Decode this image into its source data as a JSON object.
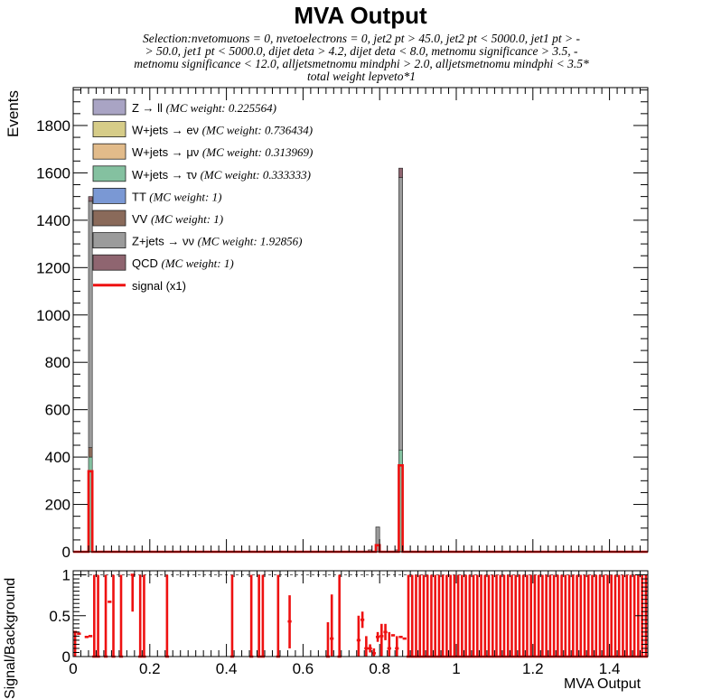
{
  "chart_data": [
    {
      "type": "bar",
      "stacked": true,
      "title": "MVA Output",
      "subtitle_lines": [
        "Selection:nvetomuons = 0, nvetoelectrons = 0, jet2 pt > 45.0, jet2 pt < 5000.0, jet1 pt > -",
        "> 50.0, jet1 pt < 5000.0, dijet deta > 4.2, dijet deta < 8.0, metnomu significance > 3.5, -",
        "metnomu significance < 12.0, alljetsmetnomu mindphi > 2.0, alljetsmetnomu mindphi < 3.5*",
        "total weight lepveto*1"
      ],
      "ylabel": "Events",
      "xlim": [
        0,
        1.5
      ],
      "ylim": [
        0,
        1960
      ],
      "yticks": [
        0,
        200,
        400,
        600,
        800,
        1000,
        1200,
        1400,
        1600,
        1800
      ],
      "bin_width": 0.01,
      "legend_position": "top-left",
      "series": [
        {
          "name": "Z → ll",
          "weight_label": "(MC weight: 0.225564)",
          "color": "#a9a4c4",
          "bins": [
            {
              "x": 0.045,
              "value": 0
            },
            {
              "x": 0.855,
              "value": 0
            }
          ]
        },
        {
          "name": "W+jets → eν",
          "weight_label": "(MC weight: 0.736434)",
          "color": "#d6cc88",
          "bins": [
            {
              "x": 0.045,
              "value": 0
            },
            {
              "x": 0.855,
              "value": 0
            }
          ]
        },
        {
          "name": "W+jets → μν",
          "weight_label": "(MC weight: 0.313969)",
          "color": "#e2bb8a",
          "bins": [
            {
              "x": 0.045,
              "value": 0
            },
            {
              "x": 0.855,
              "value": 0
            }
          ]
        },
        {
          "name": "W+jets → τν",
          "weight_label": "(MC weight: 0.333333)",
          "color": "#84c1a0",
          "bins": [
            {
              "x": 0.045,
              "value": 400
            },
            {
              "x": 0.855,
              "value": 430
            }
          ]
        },
        {
          "name": "TT",
          "weight_label": "(MC weight: 1)",
          "color": "#7a98d4",
          "bins": [
            {
              "x": 0.045,
              "value": 0
            },
            {
              "x": 0.855,
              "value": 0
            }
          ]
        },
        {
          "name": "VV",
          "weight_label": "(MC weight: 1)",
          "color": "#8a6a5a",
          "bins": [
            {
              "x": 0.045,
              "value": 40
            },
            {
              "x": 0.855,
              "value": 0
            }
          ]
        },
        {
          "name": "Z+jets → νν",
          "weight_label": "(MC weight: 1.92856)",
          "color": "#9b9b9b",
          "bins": [
            {
              "x": 0.045,
              "value": 1040
            },
            {
              "x": 0.795,
              "value": 105
            },
            {
              "x": 0.775,
              "value": 8
            },
            {
              "x": 0.845,
              "value": 8
            },
            {
              "x": 0.855,
              "value": 1150
            }
          ]
        },
        {
          "name": "QCD",
          "weight_label": "(MC weight: 1)",
          "color": "#8f6570",
          "bins": [
            {
              "x": 0.045,
              "value": 20
            },
            {
              "x": 0.855,
              "value": 40
            }
          ]
        }
      ],
      "signal": {
        "name": "signal (x1)",
        "color": "#ee1111",
        "bins": [
          {
            "x": 0.045,
            "value": 340
          },
          {
            "x": 0.795,
            "value": 28
          },
          {
            "x": 0.855,
            "value": 365
          }
        ]
      }
    },
    {
      "type": "scatter",
      "ylabel": "Signal/Background",
      "xlabel": "MVA Output",
      "xlim": [
        0,
        1.5
      ],
      "ylim": [
        0,
        1.05
      ],
      "xticks": [
        0,
        0.2,
        0.4,
        0.6,
        0.8,
        1,
        1.2,
        1.4
      ],
      "xtick_labels": [
        "0",
        "0.2",
        "0.4",
        "0.6",
        "0.8",
        "1",
        "1.2",
        "1.4"
      ],
      "yticks": [
        0,
        0.5,
        1
      ],
      "ytick_labels": [
        "0",
        "0.5",
        "1"
      ],
      "reference_line": 1,
      "color": "#ee1111",
      "points": [
        {
          "x": 0.005,
          "y": 0.3,
          "lo": 0.0,
          "hi": 0.3
        },
        {
          "x": 0.015,
          "y": 0.28,
          "lo": 0.28,
          "hi": 0.28
        },
        {
          "x": 0.035,
          "y": 0.24,
          "lo": 0.24,
          "hi": 0.24
        },
        {
          "x": 0.045,
          "y": 0.25,
          "lo": 0.25,
          "hi": 0.25
        },
        {
          "x": 0.055,
          "y": 0.0,
          "lo": 0.0,
          "hi": 1.0
        },
        {
          "x": 0.065,
          "y": 0.0,
          "lo": 0.0,
          "hi": 1.0
        },
        {
          "x": 0.085,
          "y": 0.0,
          "lo": 0.0,
          "hi": 1.0
        },
        {
          "x": 0.095,
          "y": 0.67,
          "lo": 0.67,
          "hi": 0.67
        },
        {
          "x": 0.105,
          "y": 0.0,
          "lo": 0.0,
          "hi": 1.0
        },
        {
          "x": 0.125,
          "y": 0.0,
          "lo": 0.0,
          "hi": 1.0
        },
        {
          "x": 0.155,
          "y": 1.0,
          "lo": 0.55,
          "hi": 1.0
        },
        {
          "x": 0.175,
          "y": 0.0,
          "lo": 0.0,
          "hi": 1.0
        },
        {
          "x": 0.185,
          "y": 0.0,
          "lo": 0.0,
          "hi": 1.0
        },
        {
          "x": 0.245,
          "y": 0.0,
          "lo": 0.0,
          "hi": 1.0
        },
        {
          "x": 0.415,
          "y": 0.0,
          "lo": 0.0,
          "hi": 1.0
        },
        {
          "x": 0.465,
          "y": 0.0,
          "lo": 0.0,
          "hi": 1.0
        },
        {
          "x": 0.485,
          "y": 0.0,
          "lo": 0.0,
          "hi": 1.0
        },
        {
          "x": 0.495,
          "y": 0.0,
          "lo": 0.0,
          "hi": 1.0
        },
        {
          "x": 0.535,
          "y": 0.0,
          "lo": 0.0,
          "hi": 1.0
        },
        {
          "x": 0.565,
          "y": 0.43,
          "lo": 0.1,
          "hi": 0.75
        },
        {
          "x": 0.665,
          "y": 0.0,
          "lo": 0.0,
          "hi": 0.42
        },
        {
          "x": 0.675,
          "y": 0.22,
          "lo": 0.0,
          "hi": 0.76
        },
        {
          "x": 0.695,
          "y": 0.0,
          "lo": 0.0,
          "hi": 1.0
        },
        {
          "x": 0.745,
          "y": 0.2,
          "lo": 0.0,
          "hi": 0.5
        },
        {
          "x": 0.755,
          "y": 0.45,
          "lo": 0.35,
          "hi": 0.55
        },
        {
          "x": 0.765,
          "y": 0.1,
          "lo": 0.0,
          "hi": 0.25
        },
        {
          "x": 0.775,
          "y": 0.1,
          "lo": 0.05,
          "hi": 0.15
        },
        {
          "x": 0.785,
          "y": 0.04,
          "lo": 0.0,
          "hi": 0.1
        },
        {
          "x": 0.795,
          "y": 0.24,
          "lo": 0.18,
          "hi": 0.3
        },
        {
          "x": 0.805,
          "y": 0.25,
          "lo": 0.0,
          "hi": 0.4
        },
        {
          "x": 0.815,
          "y": 0.3,
          "lo": 0.2,
          "hi": 0.4
        },
        {
          "x": 0.825,
          "y": 0.1,
          "lo": 0.0,
          "hi": 0.3
        },
        {
          "x": 0.835,
          "y": 0.26,
          "lo": 0.26,
          "hi": 0.26
        },
        {
          "x": 0.845,
          "y": 0.1,
          "lo": 0.0,
          "hi": 0.25
        },
        {
          "x": 0.855,
          "y": 0.24,
          "lo": 0.24,
          "hi": 0.24
        },
        {
          "x": 0.865,
          "y": 0.22,
          "lo": 0.22,
          "hi": 0.22
        },
        {
          "x": 0.875,
          "y": 0.0,
          "lo": 0.0,
          "hi": 1.0
        },
        {
          "x": 0.885,
          "y": 0.0,
          "lo": 0.0,
          "hi": 1.0
        },
        {
          "x": 0.895,
          "y": 0.0,
          "lo": 0.0,
          "hi": 1.0
        },
        {
          "x": 0.905,
          "y": 0.0,
          "lo": 0.0,
          "hi": 1.0
        },
        {
          "x": 0.915,
          "y": 0.0,
          "lo": 0.0,
          "hi": 1.0
        },
        {
          "x": 0.925,
          "y": 0.0,
          "lo": 0.0,
          "hi": 1.0
        },
        {
          "x": 0.935,
          "y": 0.0,
          "lo": 0.0,
          "hi": 1.0
        },
        {
          "x": 0.945,
          "y": 0.0,
          "lo": 0.0,
          "hi": 1.0
        },
        {
          "x": 0.955,
          "y": 0.0,
          "lo": 0.0,
          "hi": 1.0
        },
        {
          "x": 0.965,
          "y": 0.0,
          "lo": 0.0,
          "hi": 1.0
        },
        {
          "x": 0.975,
          "y": 0.0,
          "lo": 0.0,
          "hi": 1.0
        },
        {
          "x": 0.985,
          "y": 0.0,
          "lo": 0.0,
          "hi": 1.0
        },
        {
          "x": 0.995,
          "y": 0.0,
          "lo": 0.0,
          "hi": 1.0
        },
        {
          "x": 1.005,
          "y": 0.0,
          "lo": 0.0,
          "hi": 1.0
        },
        {
          "x": 1.015,
          "y": 0.0,
          "lo": 0.0,
          "hi": 1.0
        },
        {
          "x": 1.025,
          "y": 0.0,
          "lo": 0.0,
          "hi": 1.0
        },
        {
          "x": 1.035,
          "y": 0.0,
          "lo": 0.0,
          "hi": 1.0
        },
        {
          "x": 1.045,
          "y": 0.0,
          "lo": 0.0,
          "hi": 1.0
        },
        {
          "x": 1.055,
          "y": 0.0,
          "lo": 0.0,
          "hi": 1.0
        },
        {
          "x": 1.065,
          "y": 0.0,
          "lo": 0.0,
          "hi": 1.0
        },
        {
          "x": 1.075,
          "y": 0.0,
          "lo": 0.0,
          "hi": 1.0
        },
        {
          "x": 1.085,
          "y": 0.0,
          "lo": 0.0,
          "hi": 1.0
        },
        {
          "x": 1.095,
          "y": 0.0,
          "lo": 0.0,
          "hi": 1.0
        },
        {
          "x": 1.105,
          "y": 0.0,
          "lo": 0.0,
          "hi": 1.0
        },
        {
          "x": 1.115,
          "y": 0.0,
          "lo": 0.0,
          "hi": 1.0
        },
        {
          "x": 1.125,
          "y": 0.0,
          "lo": 0.0,
          "hi": 1.0
        },
        {
          "x": 1.135,
          "y": 0.0,
          "lo": 0.0,
          "hi": 1.0
        },
        {
          "x": 1.145,
          "y": 0.0,
          "lo": 0.0,
          "hi": 1.0
        },
        {
          "x": 1.155,
          "y": 0.0,
          "lo": 0.0,
          "hi": 1.0
        },
        {
          "x": 1.165,
          "y": 0.0,
          "lo": 0.0,
          "hi": 1.0
        },
        {
          "x": 1.175,
          "y": 0.0,
          "lo": 0.0,
          "hi": 1.0
        },
        {
          "x": 1.185,
          "y": 0.0,
          "lo": 0.0,
          "hi": 1.0
        },
        {
          "x": 1.195,
          "y": 0.0,
          "lo": 0.0,
          "hi": 1.0
        },
        {
          "x": 1.205,
          "y": 0.0,
          "lo": 0.0,
          "hi": 1.0
        },
        {
          "x": 1.215,
          "y": 0.0,
          "lo": 0.0,
          "hi": 1.0
        },
        {
          "x": 1.225,
          "y": 0.0,
          "lo": 0.0,
          "hi": 1.0
        },
        {
          "x": 1.235,
          "y": 0.0,
          "lo": 0.0,
          "hi": 1.0
        },
        {
          "x": 1.245,
          "y": 0.0,
          "lo": 0.0,
          "hi": 1.0
        },
        {
          "x": 1.255,
          "y": 0.0,
          "lo": 0.0,
          "hi": 1.0
        },
        {
          "x": 1.265,
          "y": 0.0,
          "lo": 0.0,
          "hi": 1.0
        },
        {
          "x": 1.275,
          "y": 0.0,
          "lo": 0.0,
          "hi": 1.0
        },
        {
          "x": 1.285,
          "y": 0.0,
          "lo": 0.0,
          "hi": 1.0
        },
        {
          "x": 1.295,
          "y": 0.0,
          "lo": 0.0,
          "hi": 1.0
        },
        {
          "x": 1.305,
          "y": 0.0,
          "lo": 0.0,
          "hi": 1.0
        },
        {
          "x": 1.315,
          "y": 0.0,
          "lo": 0.0,
          "hi": 1.0
        },
        {
          "x": 1.325,
          "y": 0.0,
          "lo": 0.0,
          "hi": 1.0
        },
        {
          "x": 1.335,
          "y": 0.0,
          "lo": 0.0,
          "hi": 1.0
        },
        {
          "x": 1.345,
          "y": 0.0,
          "lo": 0.0,
          "hi": 1.0
        },
        {
          "x": 1.355,
          "y": 0.0,
          "lo": 0.0,
          "hi": 1.0
        },
        {
          "x": 1.365,
          "y": 0.0,
          "lo": 0.0,
          "hi": 1.0
        },
        {
          "x": 1.375,
          "y": 0.0,
          "lo": 0.0,
          "hi": 1.0
        },
        {
          "x": 1.385,
          "y": 0.0,
          "lo": 0.0,
          "hi": 1.0
        },
        {
          "x": 1.395,
          "y": 0.0,
          "lo": 0.0,
          "hi": 1.0
        },
        {
          "x": 1.405,
          "y": 0.0,
          "lo": 0.0,
          "hi": 1.0
        },
        {
          "x": 1.415,
          "y": 0.0,
          "lo": 0.0,
          "hi": 1.0
        },
        {
          "x": 1.425,
          "y": 0.0,
          "lo": 0.0,
          "hi": 1.0
        },
        {
          "x": 1.435,
          "y": 0.0,
          "lo": 0.0,
          "hi": 1.0
        },
        {
          "x": 1.445,
          "y": 0.0,
          "lo": 0.0,
          "hi": 1.0
        },
        {
          "x": 1.455,
          "y": 0.0,
          "lo": 0.0,
          "hi": 1.0
        },
        {
          "x": 1.465,
          "y": 0.0,
          "lo": 0.0,
          "hi": 1.0
        },
        {
          "x": 1.475,
          "y": 0.0,
          "lo": 0.0,
          "hi": 1.0
        },
        {
          "x": 1.485,
          "y": 0.0,
          "lo": 0.0,
          "hi": 1.0
        },
        {
          "x": 1.495,
          "y": 0.0,
          "lo": 0.0,
          "hi": 1.0
        }
      ]
    }
  ]
}
